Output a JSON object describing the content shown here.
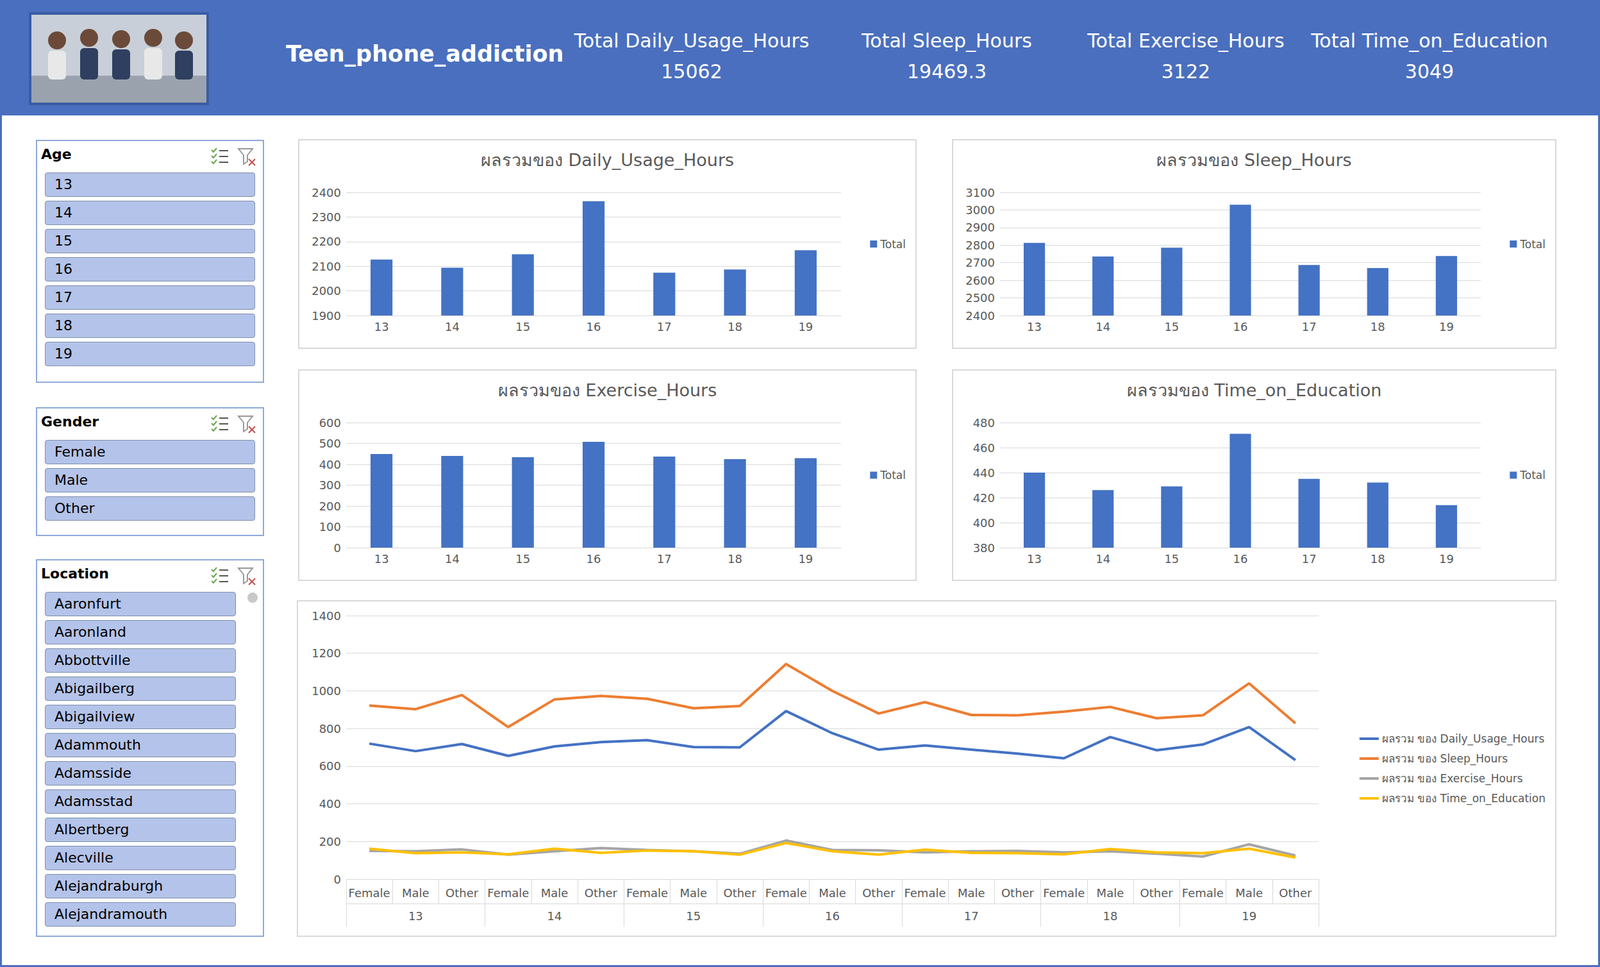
{
  "header": {
    "title": "Teen_phone_addiction",
    "kpis": [
      {
        "label": "Total Daily_Usage_Hours",
        "value": 15062
      },
      {
        "label": "Total Sleep_Hours",
        "value": 19469.3
      },
      {
        "label": "Total Exercise_Hours",
        "value": 3122
      },
      {
        "label": "Total Time_on_Education",
        "value": 3049
      }
    ]
  },
  "slicers": [
    {
      "title": "Age",
      "items": [
        "13",
        "14",
        "15",
        "16",
        "17",
        "18",
        "19"
      ]
    },
    {
      "title": "Gender",
      "items": [
        "Female",
        "Male",
        "Other"
      ]
    },
    {
      "title": "Location",
      "items": [
        "Aaronfurt",
        "Aaronland",
        "Abbottville",
        "Abigailberg",
        "Abigailview",
        "Adammouth",
        "Adamsside",
        "Adamsstad",
        "Albertberg",
        "Alecville",
        "Alejandraburgh",
        "Alejandramouth"
      ]
    }
  ],
  "chart_data": [
    {
      "type": "bar",
      "title": "ผลรวมของ Daily_Usage_Hours",
      "categories": [
        "13",
        "14",
        "15",
        "16",
        "17",
        "18",
        "19"
      ],
      "series": [
        {
          "name": "Total",
          "color": "#4472c4",
          "values": [
            2127,
            2094,
            2149,
            2364,
            2074,
            2087,
            2165
          ]
        }
      ],
      "ylim": [
        1900,
        2400
      ],
      "yticks": [
        1900,
        2000,
        2100,
        2200,
        2300,
        2400
      ],
      "grid": true,
      "legend": "right"
    },
    {
      "type": "bar",
      "title": "ผลรวมของ Sleep_Hours",
      "categories": [
        "13",
        "14",
        "15",
        "16",
        "17",
        "18",
        "19"
      ],
      "series": [
        {
          "name": "Total",
          "color": "#4472c4",
          "values": [
            2813,
            2735,
            2786,
            3030,
            2687,
            2670,
            2738
          ]
        }
      ],
      "ylim": [
        2400,
        3100
      ],
      "yticks": [
        2400,
        2500,
        2600,
        2700,
        2800,
        2900,
        3000,
        3100
      ],
      "grid": true,
      "legend": "right"
    },
    {
      "type": "bar",
      "title": "ผลรวมของ Exercise_Hours",
      "categories": [
        "13",
        "14",
        "15",
        "16",
        "17",
        "18",
        "19"
      ],
      "series": [
        {
          "name": "Total",
          "color": "#4472c4",
          "values": [
            449,
            440,
            434,
            508,
            437,
            425,
            429
          ]
        }
      ],
      "ylim": [
        0,
        600
      ],
      "yticks": [
        0,
        100,
        200,
        300,
        400,
        500,
        600
      ],
      "grid": true,
      "legend": "right"
    },
    {
      "type": "bar",
      "title": "ผลรวมของ Time_on_Education",
      "categories": [
        "13",
        "14",
        "15",
        "16",
        "17",
        "18",
        "19"
      ],
      "series": [
        {
          "name": "Total",
          "color": "#4472c4",
          "values": [
            440,
            426,
            429,
            471,
            435,
            432,
            414
          ]
        }
      ],
      "ylim": [
        380,
        480
      ],
      "yticks": [
        380,
        400,
        420,
        440,
        460,
        480
      ],
      "grid": true,
      "legend": "right"
    },
    {
      "type": "line",
      "categories": [
        "Female",
        "Male",
        "Other",
        "Female",
        "Male",
        "Other",
        "Female",
        "Male",
        "Other",
        "Female",
        "Male",
        "Other",
        "Female",
        "Male",
        "Other",
        "Female",
        "Male",
        "Other",
        "Female",
        "Male",
        "Other"
      ],
      "category_groups": [
        "13",
        "14",
        "15",
        "16",
        "17",
        "18",
        "19"
      ],
      "series": [
        {
          "name": "ผลรวม ของ Daily_Usage_Hours",
          "color": "#4472c4",
          "values": [
            720,
            680,
            718,
            655,
            705,
            728,
            738,
            702,
            700,
            893,
            775,
            688,
            710,
            688,
            667,
            642,
            755,
            685,
            715,
            808,
            632
          ]
        },
        {
          "name": "ผลรวม ของ Sleep_Hours",
          "color": "#ed7d31",
          "values": [
            922,
            903,
            978,
            808,
            955,
            973,
            958,
            908,
            920,
            1143,
            1000,
            880,
            940,
            872,
            870,
            890,
            915,
            855,
            870,
            1040,
            828
          ]
        },
        {
          "name": "ผลรวม ของ Exercise_Hours",
          "color": "#a5a5a5",
          "values": [
            150,
            148,
            158,
            130,
            148,
            165,
            155,
            148,
            135,
            205,
            155,
            153,
            142,
            148,
            150,
            142,
            148,
            135,
            120,
            185,
            125
          ]
        },
        {
          "name": "ผลรวม ของ Time_on_Education",
          "color": "#ffc000",
          "values": [
            162,
            138,
            142,
            132,
            162,
            140,
            152,
            148,
            130,
            192,
            148,
            130,
            157,
            140,
            138,
            132,
            160,
            142,
            138,
            162,
            115
          ]
        }
      ],
      "ylim": [
        0,
        1400
      ],
      "yticks": [
        0,
        200,
        400,
        600,
        800,
        1000,
        1200,
        1400
      ],
      "grid": true,
      "legend": "right"
    }
  ]
}
